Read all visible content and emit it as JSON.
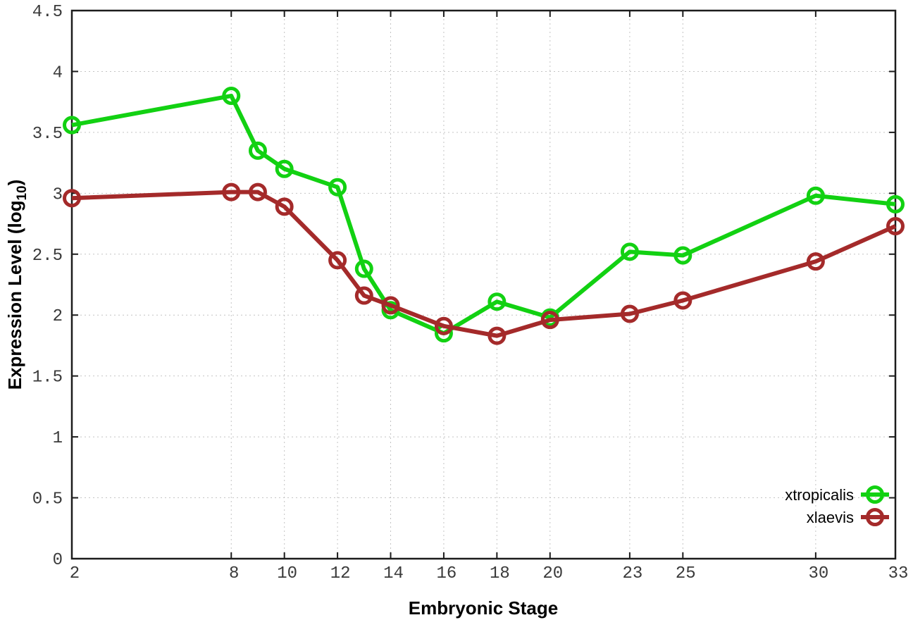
{
  "chart_data": {
    "type": "line",
    "title": "",
    "xlabel": "Embryonic Stage",
    "ylabel": "Expression Level (log10)",
    "ylabel_parts": {
      "main": "Expression Level (log",
      "sub": "10",
      "end": ")"
    },
    "x": [
      2,
      8,
      9,
      10,
      12,
      13,
      14,
      16,
      18,
      20,
      23,
      25,
      30,
      33
    ],
    "xticks": [
      2,
      8,
      10,
      12,
      14,
      16,
      18,
      20,
      23,
      25,
      30,
      33
    ],
    "yticks": [
      0,
      0.5,
      1,
      1.5,
      2,
      2.5,
      3,
      3.5,
      4,
      4.5
    ],
    "xlim": [
      2,
      33
    ],
    "ylim": [
      0,
      4.5
    ],
    "grid": true,
    "legend_position": "bottom-right",
    "series": [
      {
        "name": "xtropicalis",
        "color": "#12d112",
        "marker": "open-circle",
        "values": [
          3.56,
          3.8,
          3.35,
          3.2,
          3.05,
          2.38,
          2.04,
          1.85,
          2.11,
          1.98,
          2.52,
          2.49,
          2.98,
          2.91
        ]
      },
      {
        "name": "xlaevis",
        "color": "#a42a2a",
        "marker": "open-circle",
        "values": [
          2.96,
          3.01,
          3.01,
          2.89,
          2.45,
          2.16,
          2.08,
          1.91,
          1.83,
          1.96,
          2.01,
          2.12,
          2.44,
          2.73
        ]
      }
    ],
    "colors": {
      "background": "#ffffff",
      "axis": "#1c1c1c",
      "grid": "#c4c4c4",
      "tick_label": "#3a3a3a"
    }
  }
}
